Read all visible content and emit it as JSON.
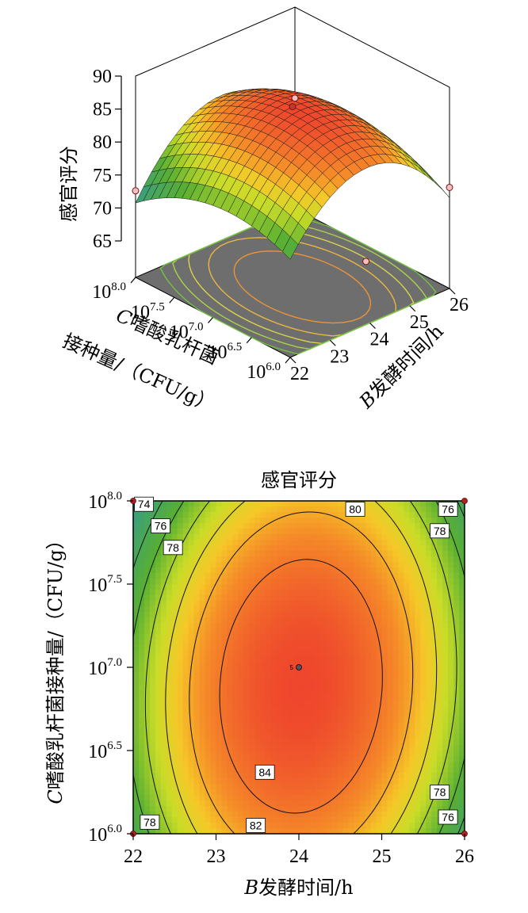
{
  "chart_data": [
    {
      "type": "surface3d",
      "title": "",
      "xlabel_italic": "B",
      "xlabel_rest": "发酵时间/h",
      "ylabel_line1_italic": "C",
      "ylabel_line1_rest": "嗜酸乳杆菌",
      "ylabel_line2": "接种量/（CFU/g）",
      "zlabel": "感官评分",
      "x_ticks": [
        "22",
        "23",
        "24",
        "25",
        "26"
      ],
      "y_ticks": [
        {
          "base": "10",
          "exp": "6.0"
        },
        {
          "base": "10",
          "exp": "6.5"
        },
        {
          "base": "10",
          "exp": "7.0"
        },
        {
          "base": "10",
          "exp": "7.5"
        },
        {
          "base": "10",
          "exp": "8.0"
        }
      ],
      "z_ticks": [
        "65",
        "70",
        "75",
        "80",
        "85",
        "90"
      ],
      "xlim": [
        22,
        26
      ],
      "ylim_log": [
        6.0,
        8.0
      ],
      "zlim": [
        65,
        90
      ],
      "design_points": [
        {
          "x": 24,
          "y_log": 7.0,
          "z": 86.2
        },
        {
          "x": 22,
          "y_log": 8.0,
          "z": 72.6
        },
        {
          "x": 26,
          "y_log": 8.0,
          "z": 76.2
        },
        {
          "x": 26,
          "y_log": 6.0,
          "z": 74.8
        }
      ]
    },
    {
      "type": "contour",
      "title": "感官评分",
      "xlabel_italic": "B",
      "xlabel_rest": "发酵时间/h",
      "ylabel_italic": "C",
      "ylabel_rest": "嗜酸乳杆菌接种量/（CFU/g）",
      "x_ticks": [
        "22",
        "23",
        "24",
        "25",
        "26"
      ],
      "y_ticks": [
        {
          "base": "10",
          "exp": "6.0"
        },
        {
          "base": "10",
          "exp": "6.5"
        },
        {
          "base": "10",
          "exp": "7.0"
        },
        {
          "base": "10",
          "exp": "7.5"
        },
        {
          "base": "10",
          "exp": "8.0"
        }
      ],
      "xlim": [
        22,
        26
      ],
      "ylim_log": [
        6.0,
        8.0
      ],
      "contour_levels": [
        74,
        76,
        78,
        80,
        82,
        84
      ],
      "contour_labels": [
        {
          "text": "74",
          "x": 22.13,
          "y_log": 7.98
        },
        {
          "text": "76",
          "x": 22.33,
          "y_log": 7.85
        },
        {
          "text": "78",
          "x": 22.48,
          "y_log": 7.72
        },
        {
          "text": "80",
          "x": 24.68,
          "y_log": 7.95
        },
        {
          "text": "76",
          "x": 25.8,
          "y_log": 7.95
        },
        {
          "text": "78",
          "x": 25.7,
          "y_log": 7.82
        },
        {
          "text": "84",
          "x": 23.59,
          "y_log": 6.37
        },
        {
          "text": "82",
          "x": 23.48,
          "y_log": 6.05
        },
        {
          "text": "78",
          "x": 22.2,
          "y_log": 6.07
        },
        {
          "text": "78",
          "x": 25.7,
          "y_log": 6.25
        },
        {
          "text": "76",
          "x": 25.8,
          "y_log": 6.1
        }
      ],
      "center_point": {
        "x": 24,
        "y_log": 7.0,
        "label": "5"
      },
      "corner_points": [
        {
          "x": 22,
          "y_log": 8.0
        },
        {
          "x": 26,
          "y_log": 8.0
        },
        {
          "x": 22,
          "y_log": 6.0
        },
        {
          "x": 26,
          "y_log": 6.0
        }
      ]
    }
  ]
}
